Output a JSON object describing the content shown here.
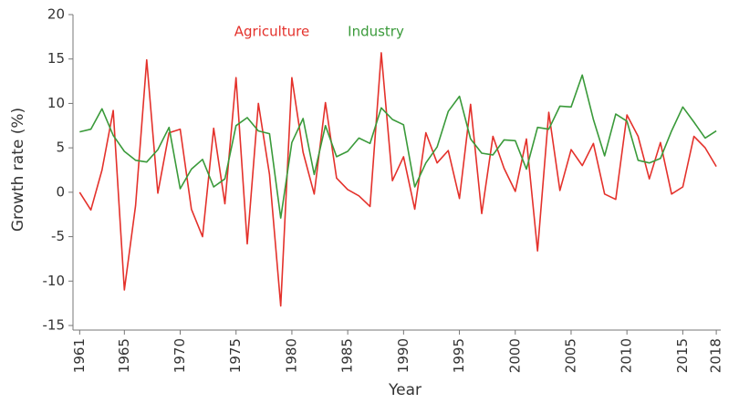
{
  "chart_data": {
    "type": "line",
    "x": [
      1961,
      1962,
      1963,
      1964,
      1965,
      1966,
      1967,
      1968,
      1969,
      1970,
      1971,
      1972,
      1973,
      1974,
      1975,
      1976,
      1977,
      1978,
      1979,
      1980,
      1981,
      1982,
      1983,
      1984,
      1985,
      1986,
      1987,
      1988,
      1989,
      1990,
      1991,
      1992,
      1993,
      1994,
      1995,
      1996,
      1997,
      1998,
      1999,
      2000,
      2001,
      2002,
      2003,
      2004,
      2005,
      2006,
      2007,
      2008,
      2009,
      2010,
      2011,
      2012,
      2013,
      2014,
      2015,
      2016,
      2017,
      2018
    ],
    "series": [
      {
        "name": "Agriculture",
        "color": "#e4312b",
        "values": [
          0,
          -2,
          2.5,
          9.2,
          -11,
          -1.5,
          14.9,
          -0.1,
          6.7,
          7.1,
          -1.9,
          -5,
          7.2,
          -1.3,
          12.9,
          -5.8,
          10,
          2,
          -12.8,
          12.9,
          4.5,
          -0.2,
          10.1,
          1.6,
          0.3,
          -0.4,
          -1.6,
          15.7,
          1.3,
          4,
          -1.9,
          6.7,
          3.3,
          4.7,
          -0.7,
          9.9,
          -2.4,
          6.3,
          2.7,
          0.1,
          6,
          -6.6,
          9,
          0.2,
          4.8,
          3,
          5.5,
          -0.2,
          -0.8,
          8.7,
          6.3,
          1.5,
          5.6,
          -0.2,
          0.6,
          6.3,
          5,
          2.9
        ]
      },
      {
        "name": "Industry",
        "color": "#3a9a3a",
        "values": [
          6.8,
          7.1,
          9.4,
          6.4,
          4.6,
          3.6,
          3.4,
          4.8,
          7.3,
          0.4,
          2.6,
          3.7,
          0.6,
          1.5,
          7.5,
          8.4,
          6.9,
          6.6,
          -2.9,
          5.6,
          8.3,
          2,
          7.5,
          4,
          4.6,
          6.1,
          5.5,
          9.5,
          8.2,
          7.6,
          0.6,
          3.3,
          5.1,
          9.1,
          10.8,
          6,
          4.4,
          4.2,
          5.9,
          5.8,
          2.6,
          7.3,
          7.1,
          9.7,
          9.6,
          13.2,
          8.2,
          4.1,
          8.8,
          8,
          3.6,
          3.3,
          3.8,
          6.9,
          9.6,
          7.9,
          6.1,
          6.9
        ]
      }
    ],
    "xlabel": "Year",
    "ylabel": "Growth rate (%)",
    "xlim": [
      1960.4,
      2018.4
    ],
    "ylim": [
      -15,
      20
    ],
    "xticks": [
      1961,
      1965,
      1970,
      1975,
      1980,
      1985,
      1990,
      1995,
      2000,
      2005,
      2010,
      2015,
      2018
    ],
    "yticks": [
      -15,
      -10,
      -5,
      0,
      5,
      10,
      15,
      20
    ],
    "grid": false
  }
}
